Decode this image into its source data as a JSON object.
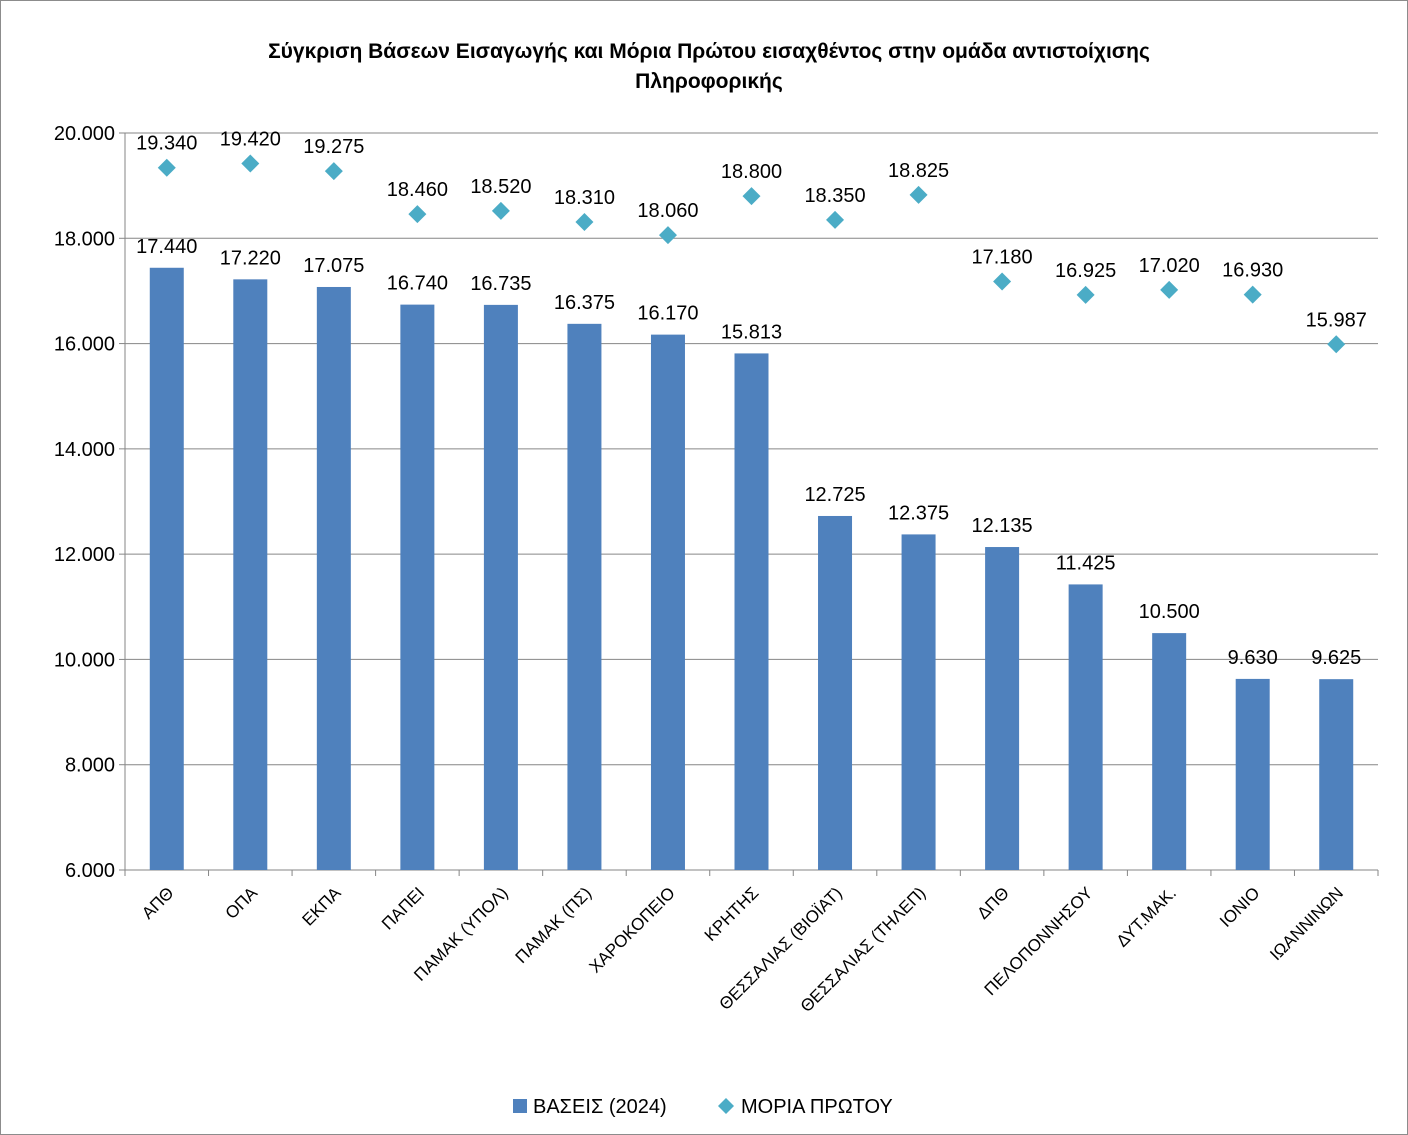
{
  "chart_data": {
    "type": "bar",
    "title_lines": [
      "Σύγκριση Βάσεων Εισαγωγής και Μόρια Πρώτου εισαχθέντος στην ομάδα αντιστοίχισης",
      "Πληροφορικής"
    ],
    "categories": [
      "ΑΠΘ",
      "ΟΠΑ",
      "ΕΚΠΑ",
      "ΠΑΠΕΙ",
      "ΠΑΜΑΚ (ΥΠΟΛ)",
      "ΠΑΜΑΚ (ΠΣ)",
      "ΧΑΡΟΚΟΠΕΙΟ",
      "ΚΡΗΤΗΣ",
      "ΘΕΣΣΑΛΙΑΣ (ΒΙΟΪΑΤ)",
      "ΘΕΣΣΑΛΙΑΣ (ΤΗΛΕΠ)",
      "ΔΠΘ",
      "ΠΕΛΟΠΟΝΝΗΣΟΥ",
      "ΔΥΤ.ΜΑΚ.",
      "ΙΟΝΙΟ",
      "ΙΩΑΝΝΙΝΩΝ"
    ],
    "series": [
      {
        "name": "ΒΑΣΕΙΣ (2024)",
        "kind": "bar",
        "color": "#4f81bd",
        "values": [
          17440,
          17220,
          17075,
          16740,
          16735,
          16375,
          16170,
          15813,
          12725,
          12375,
          12135,
          11425,
          10500,
          9630,
          9625
        ],
        "labels": [
          "17.440",
          "17.220",
          "17.075",
          "16.740",
          "16.735",
          "16.375",
          "16.170",
          "15.813",
          "12.725",
          "12.375",
          "12.135",
          "11.425",
          "10.500",
          "9.630",
          "9.625"
        ]
      },
      {
        "name": "ΜΟΡΙΑ ΠΡΩΤΟΥ",
        "kind": "marker",
        "color": "#4bacc6",
        "values": [
          19340,
          19420,
          19275,
          18460,
          18520,
          18310,
          18060,
          18800,
          18350,
          18825,
          17180,
          16925,
          17020,
          16930,
          15987
        ],
        "labels": [
          "19.340",
          "19.420",
          "19.275",
          "18.460",
          "18.520",
          "18.310",
          "18.060",
          "18.800",
          "18.350",
          "18.825",
          "17.180",
          "16.925",
          "17.020",
          "16.930",
          "15.987"
        ]
      }
    ],
    "ylim": [
      6000,
      20000
    ],
    "yticks": [
      6000,
      8000,
      10000,
      12000,
      14000,
      16000,
      18000,
      20000
    ],
    "ytick_labels": [
      "6.000",
      "8.000",
      "10.000",
      "12.000",
      "14.000",
      "16.000",
      "18.000",
      "20.000"
    ],
    "grid": true,
    "legend_position": "bottom"
  }
}
